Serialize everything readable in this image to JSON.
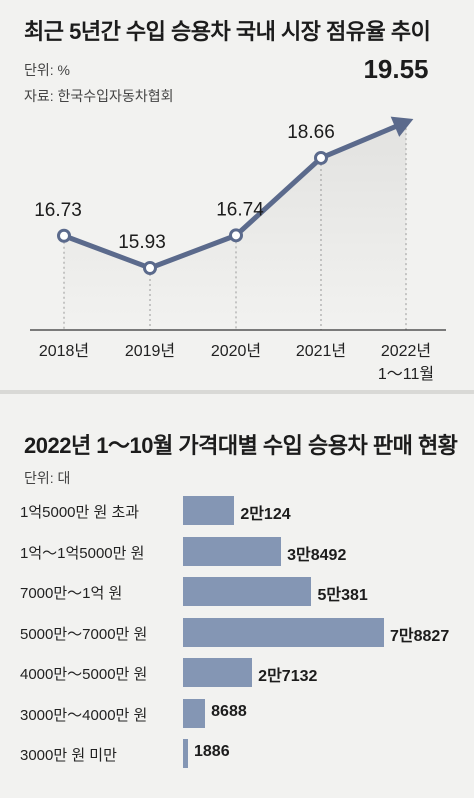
{
  "line_chart": {
    "title": "최근 5년간 수입 승용차 국내 시장 점유율 추이",
    "unit": "단위: %",
    "source": "자료: 한국수입자동차협회"
  },
  "bar_chart": {
    "title": "2022년 1～10월 가격대별 수입 승용차 판매 현황",
    "unit": "단위: 대"
  },
  "colors": {
    "line": "#5b6a8c",
    "bar": "#8496b4",
    "area": "#e2e2e0",
    "background": "#f2f2f0"
  },
  "chart_data": [
    {
      "type": "line",
      "title": "최근 5년간 수입 승용차 국내 시장 점유율 추이",
      "ylabel": "단위: %",
      "categories": [
        "2018년",
        "2019년",
        "2020년",
        "2021년",
        "2022년"
      ],
      "category_sublabels": [
        "",
        "",
        "",
        "",
        "1～11월"
      ],
      "values": [
        16.73,
        15.93,
        16.74,
        18.66,
        19.55
      ],
      "value_labels": [
        "16.73",
        "15.93",
        "16.74",
        "18.66",
        "19.55"
      ],
      "ylim": [
        15.0,
        20.0
      ],
      "grid": false,
      "last_point_arrow": true
    },
    {
      "type": "bar",
      "orientation": "horizontal",
      "title": "2022년 1～10월 가격대별 수입 승용차 판매 현황",
      "xlabel": "단위: 대",
      "categories": [
        "1억5000만 원 초과",
        "1억～1억5000만 원",
        "7000만～1억 원",
        "5000만～7000만 원",
        "4000만～5000만 원",
        "3000만～4000만 원",
        "3000만 원 미만"
      ],
      "values": [
        20124,
        38492,
        50381,
        78827,
        27132,
        8688,
        1886
      ],
      "value_labels": [
        "2만124",
        "3만8492",
        "5만381",
        "7만8827",
        "2만7132",
        "8688",
        "1886"
      ],
      "xlim": [
        0,
        78827
      ]
    }
  ]
}
